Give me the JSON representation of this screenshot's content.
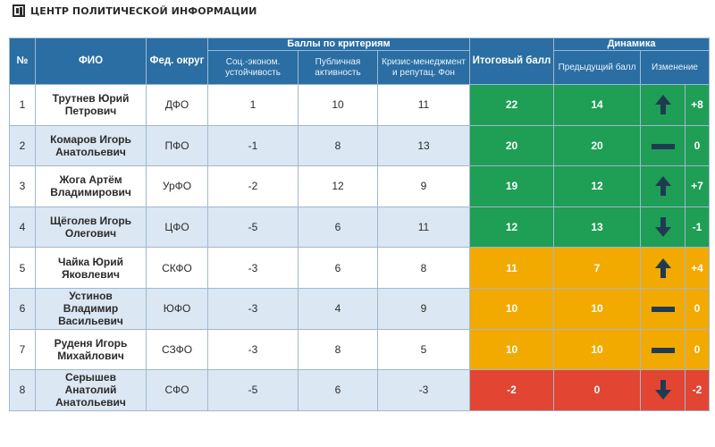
{
  "brand": {
    "title": "ЦЕНТР ПОЛИТИЧЕСКОЙ ИНФОРМАЦИИ",
    "logo_icon": "cpi-logo-icon"
  },
  "colors": {
    "header": "#2a6ea3",
    "green": "#1f9e55",
    "yellow": "#f2a900",
    "red": "#e24532",
    "arrow": "#1f3b52",
    "stripe": "#dbe7f3"
  },
  "headers": {
    "num": "№",
    "name": "ФИО",
    "district": "Фед. округ",
    "criteria_group": "Баллы по критериям",
    "crit1": "Соц.-эконом. устойчивость",
    "crit2": "Публичная активность",
    "crit3": "Кризис-менеджмент и репутац. Фон",
    "total": "Итоговый балл",
    "dynamics_group": "Динамика",
    "previous": "Предыдущий балл",
    "change": "Изменение"
  },
  "rows": [
    {
      "num": "1",
      "name": "Трутнев Юрий Петрович",
      "district": "ДФО",
      "crit1": "1",
      "crit2": "10",
      "crit3": "11",
      "total": "22",
      "previous": "14",
      "trend": "up",
      "trend_icon": "arrow-up-icon",
      "change": "+8",
      "tier": "g"
    },
    {
      "num": "2",
      "name": "Комаров Игорь Анатольевич",
      "district": "ПФО",
      "crit1": "-1",
      "crit2": "8",
      "crit3": "13",
      "total": "20",
      "previous": "20",
      "trend": "flat",
      "trend_icon": "dash-icon",
      "change": "0",
      "tier": "g"
    },
    {
      "num": "3",
      "name": "Жога Артём Владимирович",
      "district": "УрФО",
      "crit1": "-2",
      "crit2": "12",
      "crit3": "9",
      "total": "19",
      "previous": "12",
      "trend": "up",
      "trend_icon": "arrow-up-icon",
      "change": "+7",
      "tier": "g"
    },
    {
      "num": "4",
      "name": "Щёголев Игорь Олегович",
      "district": "ЦФО",
      "crit1": "-5",
      "crit2": "6",
      "crit3": "11",
      "total": "12",
      "previous": "13",
      "trend": "down",
      "trend_icon": "arrow-down-icon",
      "change": "-1",
      "tier": "g"
    },
    {
      "num": "5",
      "name": "Чайка Юрий Яковлевич",
      "district": "СКФО",
      "crit1": "-3",
      "crit2": "6",
      "crit3": "8",
      "total": "11",
      "previous": "7",
      "trend": "up",
      "trend_icon": "arrow-up-icon",
      "change": "+4",
      "tier": "y"
    },
    {
      "num": "6",
      "name": "Устинов Владимир Васильевич",
      "district": "ЮФО",
      "crit1": "-3",
      "crit2": "4",
      "crit3": "9",
      "total": "10",
      "previous": "10",
      "trend": "flat",
      "trend_icon": "dash-icon",
      "change": "0",
      "tier": "y"
    },
    {
      "num": "7",
      "name": "Руденя Игорь Михайлович",
      "district": "СЗФО",
      "crit1": "-3",
      "crit2": "8",
      "crit3": "5",
      "total": "10",
      "previous": "10",
      "trend": "flat",
      "trend_icon": "dash-icon",
      "change": "0",
      "tier": "y"
    },
    {
      "num": "8",
      "name": "Серышев Анатолий Анатольевич",
      "district": "СФО",
      "crit1": "-5",
      "crit2": "6",
      "crit3": "-3",
      "total": "-2",
      "previous": "0",
      "trend": "down",
      "trend_icon": "arrow-down-icon",
      "change": "-2",
      "tier": "r"
    }
  ]
}
